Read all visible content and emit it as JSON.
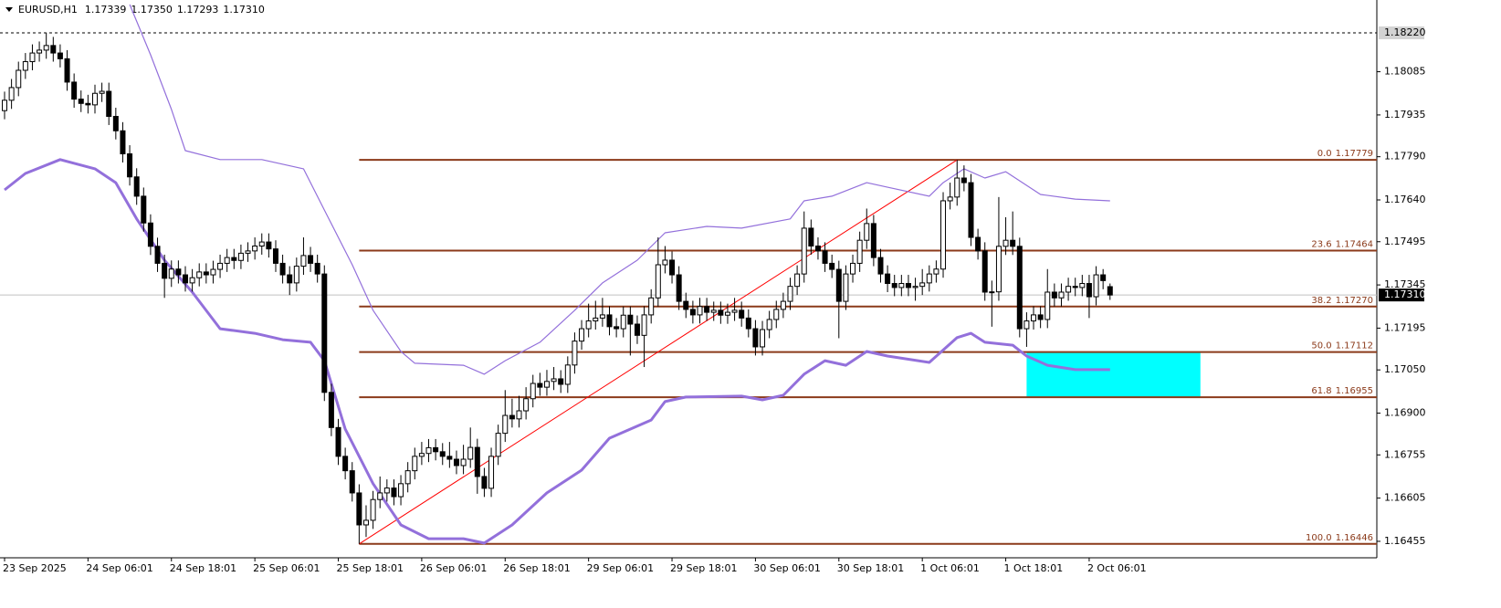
{
  "chart_data": {
    "type": "candlestick",
    "symbol": "EURUSD,H1",
    "quote_labels": [
      "1.17339",
      "1.17350",
      "1.17293",
      "1.17310"
    ],
    "up_color": "#ffffff",
    "down_color": "#000000",
    "ylim": [
      1.16401,
      1.18334
    ],
    "yticks": [
      1.18085,
      1.17935,
      {
        "value": 1.1779,
        "label": "1.17790"
      },
      {
        "value": 1.1764,
        "label": "1.17640"
      },
      1.17495,
      1.17345,
      1.17195,
      {
        "value": 1.1705,
        "label": "1.17050"
      },
      {
        "value": 1.169,
        "label": "1.16900"
      },
      1.16755,
      1.16605,
      1.16455
    ],
    "xticks": [
      {
        "value": 0,
        "label": "23 Sep 2025"
      },
      {
        "value": 12,
        "label": "24 Sep 06:01"
      },
      {
        "value": 24,
        "label": "24 Sep 18:01"
      },
      {
        "value": 36,
        "label": "25 Sep 06:01"
      },
      {
        "value": 48,
        "label": "25 Sep 18:01"
      },
      {
        "value": 60,
        "label": "26 Sep 06:01"
      },
      {
        "value": 72,
        "label": "26 Sep 18:01"
      },
      {
        "value": 84,
        "label": "29 Sep 06:01"
      },
      {
        "value": 96,
        "label": "29 Sep 18:01"
      },
      {
        "value": 108,
        "label": "30 Sep 06:01"
      },
      {
        "value": 120,
        "label": "30 Sep 18:01"
      },
      {
        "value": 132,
        "label": "1 Oct 06:01"
      },
      {
        "value": 144,
        "label": "1 Oct 18:01"
      },
      {
        "value": 156,
        "label": "2 Oct 06:01"
      }
    ],
    "high_line": {
      "value": 1.1822,
      "label": "1.18220"
    },
    "current_price": {
      "value": 1.1731,
      "label": "1.17310"
    },
    "candles": [
      [
        1.1795,
        1.18016,
        1.1792,
        1.17986
      ],
      [
        1.17986,
        1.1806,
        1.17956,
        1.1803
      ],
      [
        1.1803,
        1.1812,
        1.18,
        1.1809
      ],
      [
        1.1809,
        1.1815,
        1.1806,
        1.1812
      ],
      [
        1.1812,
        1.1818,
        1.1809,
        1.1815
      ],
      [
        1.1815,
        1.1819,
        1.1812,
        1.1816
      ],
      [
        1.1816,
        1.1822,
        1.1813,
        1.18176
      ],
      [
        1.18176,
        1.18206,
        1.1812,
        1.1815
      ],
      [
        1.1815,
        1.1818,
        1.181,
        1.1813
      ],
      [
        1.1813,
        1.1816,
        1.18019,
        1.18049
      ],
      [
        1.18049,
        1.18079,
        1.1796,
        1.1799
      ],
      [
        1.1799,
        1.1802,
        1.17945,
        1.17975
      ],
      [
        1.17975,
        1.18005,
        1.1794,
        1.1797
      ],
      [
        1.1797,
        1.1804,
        1.1794,
        1.1801
      ],
      [
        1.1801,
        1.18047,
        1.1798,
        1.18017
      ],
      [
        1.18017,
        1.18047,
        1.179,
        1.1793
      ],
      [
        1.1793,
        1.1796,
        1.1785,
        1.1788
      ],
      [
        1.1788,
        1.1791,
        1.1777,
        1.178
      ],
      [
        1.178,
        1.1783,
        1.1769,
        1.1772
      ],
      [
        1.1772,
        1.1775,
        1.17623,
        1.17653
      ],
      [
        1.17653,
        1.17683,
        1.1753,
        1.1756
      ],
      [
        1.1756,
        1.1759,
        1.17449,
        1.17479
      ],
      [
        1.17479,
        1.17509,
        1.1739,
        1.1742
      ],
      [
        1.1742,
        1.1745,
        1.173,
        1.17368
      ],
      [
        1.17368,
        1.1743,
        1.17338,
        1.174
      ],
      [
        1.174,
        1.1743,
        1.1735,
        1.1738
      ],
      [
        1.1738,
        1.1741,
        1.17322,
        1.17352
      ],
      [
        1.17352,
        1.174,
        1.17322,
        1.1737
      ],
      [
        1.1737,
        1.1742,
        1.1734,
        1.1739
      ],
      [
        1.1739,
        1.1742,
        1.1735,
        1.1738
      ],
      [
        1.1738,
        1.17429,
        1.1735,
        1.17399
      ],
      [
        1.17399,
        1.1745,
        1.17369,
        1.1742
      ],
      [
        1.1742,
        1.1747,
        1.1739,
        1.1744
      ],
      [
        1.1744,
        1.1747,
        1.174,
        1.1743
      ],
      [
        1.1743,
        1.17485,
        1.174,
        1.17455
      ],
      [
        1.17455,
        1.17493,
        1.17425,
        1.17463
      ],
      [
        1.17463,
        1.1751,
        1.17433,
        1.1748
      ],
      [
        1.1748,
        1.17524,
        1.1745,
        1.17494
      ],
      [
        1.17494,
        1.17524,
        1.1744,
        1.1747
      ],
      [
        1.1747,
        1.175,
        1.1739,
        1.1742
      ],
      [
        1.1742,
        1.1745,
        1.1735,
        1.1738
      ],
      [
        1.1738,
        1.1741,
        1.1731,
        1.17352
      ],
      [
        1.17352,
        1.1744,
        1.17322,
        1.1741
      ],
      [
        1.1741,
        1.1751,
        1.1738,
        1.17447
      ],
      [
        1.17447,
        1.17477,
        1.1739,
        1.1742
      ],
      [
        1.1742,
        1.1745,
        1.17353,
        1.17383
      ],
      [
        1.17383,
        1.17413,
        1.16942,
        1.16972
      ],
      [
        1.16972,
        1.17002,
        1.1682,
        1.1685
      ],
      [
        1.1685,
        1.1688,
        1.1672,
        1.1675
      ],
      [
        1.1675,
        1.1678,
        1.1667,
        1.167
      ],
      [
        1.167,
        1.1673,
        1.16593,
        1.16623
      ],
      [
        1.16623,
        1.16653,
        1.16446,
        1.16512
      ],
      [
        1.16512,
        1.1658,
        1.1647,
        1.16528
      ],
      [
        1.16528,
        1.1663,
        1.16498,
        1.166
      ],
      [
        1.166,
        1.1668,
        1.1657,
        1.16623
      ],
      [
        1.16623,
        1.1667,
        1.16593,
        1.1664
      ],
      [
        1.1664,
        1.1667,
        1.1658,
        1.1661
      ],
      [
        1.1661,
        1.16685,
        1.1658,
        1.16655
      ],
      [
        1.16655,
        1.1673,
        1.16625,
        1.167
      ],
      [
        1.167,
        1.1678,
        1.1667,
        1.1675
      ],
      [
        1.1675,
        1.168,
        1.1672,
        1.1676
      ],
      [
        1.1676,
        1.1681,
        1.1673,
        1.1678
      ],
      [
        1.1678,
        1.1681,
        1.16736,
        1.16766
      ],
      [
        1.16766,
        1.16796,
        1.1672,
        1.1675
      ],
      [
        1.1675,
        1.168,
        1.1671,
        1.1674
      ],
      [
        1.1674,
        1.1677,
        1.16688,
        1.16718
      ],
      [
        1.16718,
        1.1679,
        1.16688,
        1.1674
      ],
      [
        1.1674,
        1.1685,
        1.1671,
        1.16781
      ],
      [
        1.16781,
        1.16811,
        1.1662,
        1.1668
      ],
      [
        1.1668,
        1.1671,
        1.16609,
        1.16639
      ],
      [
        1.16639,
        1.1678,
        1.16609,
        1.1675
      ],
      [
        1.1675,
        1.1686,
        1.1672,
        1.1683
      ],
      [
        1.1683,
        1.1698,
        1.168,
        1.16892
      ],
      [
        1.16892,
        1.1695,
        1.1685,
        1.1688
      ],
      [
        1.1688,
        1.1696,
        1.1685,
        1.16908
      ],
      [
        1.16908,
        1.1699,
        1.16878,
        1.1695
      ],
      [
        1.1695,
        1.17033,
        1.1692,
        1.17003
      ],
      [
        1.17003,
        1.1704,
        1.1696,
        1.1699
      ],
      [
        1.1699,
        1.1705,
        1.1696,
        1.1701
      ],
      [
        1.1701,
        1.1706,
        1.1698,
        1.17019
      ],
      [
        1.17019,
        1.17049,
        1.1697,
        1.17
      ],
      [
        1.17,
        1.17097,
        1.1697,
        1.17067
      ],
      [
        1.17067,
        1.1718,
        1.17037,
        1.1715
      ],
      [
        1.1715,
        1.17223,
        1.1712,
        1.17193
      ],
      [
        1.17193,
        1.1728,
        1.17163,
        1.1722
      ],
      [
        1.1722,
        1.1729,
        1.1719,
        1.1723
      ],
      [
        1.1723,
        1.173,
        1.172,
        1.17241
      ],
      [
        1.17241,
        1.17271,
        1.1717,
        1.172
      ],
      [
        1.172,
        1.1723,
        1.17163,
        1.17193
      ],
      [
        1.17193,
        1.1727,
        1.17163,
        1.1724
      ],
      [
        1.1724,
        1.1727,
        1.171,
        1.17209
      ],
      [
        1.17209,
        1.17239,
        1.1714,
        1.1717
      ],
      [
        1.1717,
        1.17271,
        1.1706,
        1.17241
      ],
      [
        1.17241,
        1.1733,
        1.17211,
        1.173
      ],
      [
        1.173,
        1.1751,
        1.1727,
        1.17415
      ],
      [
        1.17415,
        1.1748,
        1.17385,
        1.17431
      ],
      [
        1.17431,
        1.17461,
        1.1735,
        1.1738
      ],
      [
        1.1738,
        1.1741,
        1.17258,
        1.17288
      ],
      [
        1.17288,
        1.17318,
        1.1723,
        1.1726
      ],
      [
        1.1726,
        1.1729,
        1.17211,
        1.17241
      ],
      [
        1.17241,
        1.173,
        1.17211,
        1.1727
      ],
      [
        1.1727,
        1.173,
        1.1722,
        1.1725
      ],
      [
        1.1725,
        1.17287,
        1.1722,
        1.17257
      ],
      [
        1.17257,
        1.17287,
        1.1721,
        1.1724
      ],
      [
        1.1724,
        1.1728,
        1.1721,
        1.1725
      ],
      [
        1.1725,
        1.173,
        1.1722,
        1.17257
      ],
      [
        1.17257,
        1.17287,
        1.172,
        1.1723
      ],
      [
        1.1723,
        1.1726,
        1.17163,
        1.17193
      ],
      [
        1.17193,
        1.17223,
        1.171,
        1.1713
      ],
      [
        1.1713,
        1.1722,
        1.171,
        1.1719
      ],
      [
        1.1719,
        1.17255,
        1.1716,
        1.17225
      ],
      [
        1.17225,
        1.1729,
        1.17195,
        1.1726
      ],
      [
        1.1726,
        1.17318,
        1.1723,
        1.17288
      ],
      [
        1.17288,
        1.1737,
        1.17258,
        1.1734
      ],
      [
        1.1734,
        1.17413,
        1.1731,
        1.17383
      ],
      [
        1.17383,
        1.176,
        1.17353,
        1.17542
      ],
      [
        1.17542,
        1.17572,
        1.1745,
        1.1748
      ],
      [
        1.1748,
        1.1751,
        1.17433,
        1.17463
      ],
      [
        1.17463,
        1.17493,
        1.1739,
        1.1742
      ],
      [
        1.1742,
        1.1745,
        1.17369,
        1.17399
      ],
      [
        1.17399,
        1.17429,
        1.1716,
        1.17288
      ],
      [
        1.17288,
        1.17413,
        1.17258,
        1.17383
      ],
      [
        1.17383,
        1.1745,
        1.17353,
        1.1742
      ],
      [
        1.1742,
        1.1753,
        1.1739,
        1.175
      ],
      [
        1.175,
        1.1761,
        1.1747,
        1.17558
      ],
      [
        1.17558,
        1.17588,
        1.1741,
        1.1744
      ],
      [
        1.1744,
        1.1747,
        1.17353,
        1.17383
      ],
      [
        1.17383,
        1.17413,
        1.1732,
        1.1735
      ],
      [
        1.1735,
        1.1738,
        1.17306,
        1.17336
      ],
      [
        1.17336,
        1.1738,
        1.17306,
        1.1735
      ],
      [
        1.1735,
        1.1738,
        1.17306,
        1.17336
      ],
      [
        1.17336,
        1.1737,
        1.1729,
        1.1734
      ],
      [
        1.1734,
        1.174,
        1.1731,
        1.17352
      ],
      [
        1.17352,
        1.17413,
        1.17322,
        1.17383
      ],
      [
        1.17383,
        1.1743,
        1.17353,
        1.174
      ],
      [
        1.174,
        1.17667,
        1.1737,
        1.17637
      ],
      [
        1.17637,
        1.177,
        1.17607,
        1.1765
      ],
      [
        1.1765,
        1.17779,
        1.1762,
        1.17716
      ],
      [
        1.17716,
        1.1776,
        1.1767,
        1.177
      ],
      [
        1.177,
        1.1773,
        1.1748,
        1.1751
      ],
      [
        1.1751,
        1.1754,
        1.17433,
        1.17463
      ],
      [
        1.17463,
        1.17493,
        1.1729,
        1.1732
      ],
      [
        1.1732,
        1.1736,
        1.172,
        1.17321
      ],
      [
        1.17321,
        1.1765,
        1.1729,
        1.17479
      ],
      [
        1.17479,
        1.1758,
        1.17449,
        1.175
      ],
      [
        1.175,
        1.176,
        1.17449,
        1.17479
      ],
      [
        1.17479,
        1.17509,
        1.17163,
        1.17193
      ],
      [
        1.17193,
        1.1725,
        1.1713,
        1.1722
      ],
      [
        1.1722,
        1.17271,
        1.1719,
        1.17241
      ],
      [
        1.17241,
        1.17271,
        1.17195,
        1.17225
      ],
      [
        1.17225,
        1.174,
        1.17195,
        1.1732
      ],
      [
        1.1732,
        1.1735,
        1.1727,
        1.173
      ],
      [
        1.173,
        1.1735,
        1.1727,
        1.1732
      ],
      [
        1.1732,
        1.1737,
        1.1729,
        1.1734
      ],
      [
        1.1734,
        1.1737,
        1.17306,
        1.17336
      ],
      [
        1.17336,
        1.1738,
        1.17306,
        1.1735
      ],
      [
        1.1735,
        1.1738,
        1.1723,
        1.17304
      ],
      [
        1.17304,
        1.1741,
        1.17274,
        1.1738
      ],
      [
        1.1738,
        1.174,
        1.1733,
        1.1736
      ],
      [
        1.17339,
        1.1735,
        1.17293,
        1.1731
      ]
    ],
    "indicators": [
      {
        "color": "#9370db",
        "bold": false,
        "x": [
          18,
          21,
          24,
          26,
          31,
          37,
          43,
          46,
          50,
          53,
          57,
          59,
          66,
          69,
          72,
          77,
          82,
          86,
          91,
          95,
          101,
          106,
          113,
          115,
          119,
          124,
          127,
          133,
          135,
          138,
          141,
          144,
          149,
          154,
          159
        ],
        "values": [
          1.18318,
          1.18144,
          1.17954,
          1.17811,
          1.1778,
          1.1778,
          1.17748,
          1.17605,
          1.17415,
          1.17257,
          1.17114,
          1.17073,
          1.17066,
          1.17035,
          1.17082,
          1.17146,
          1.17257,
          1.17352,
          1.17431,
          1.17526,
          1.17548,
          1.17542,
          1.17574,
          1.17637,
          1.17653,
          1.177,
          1.17684,
          1.17653,
          1.177,
          1.17748,
          1.17716,
          1.17738,
          1.17659,
          1.17643,
          1.17637
        ]
      },
      {
        "color": "#9370db",
        "bold": true,
        "x": [
          0,
          3,
          8,
          13,
          16,
          19,
          23,
          27,
          31,
          36,
          40,
          44,
          46,
          49,
          53,
          57,
          61,
          66,
          69,
          73,
          78,
          83,
          87,
          93,
          95,
          98,
          106,
          109,
          112,
          115,
          118,
          121,
          124,
          127,
          133,
          137,
          139,
          141,
          145,
          147,
          150,
          154,
          159
        ],
        "values": [
          1.17675,
          1.17732,
          1.1778,
          1.17748,
          1.177,
          1.17574,
          1.17431,
          1.1732,
          1.17193,
          1.17177,
          1.17155,
          1.17146,
          1.17082,
          1.16845,
          1.16655,
          1.16512,
          1.16464,
          1.16464,
          1.16449,
          1.16512,
          1.16623,
          1.16702,
          1.16813,
          1.16876,
          1.1694,
          1.16956,
          1.16959,
          1.16946,
          1.16962,
          1.17035,
          1.17082,
          1.17066,
          1.17114,
          1.17098,
          1.17076,
          1.17162,
          1.17177,
          1.17146,
          1.17136,
          1.17098,
          1.17066,
          1.17051,
          1.17051
        ]
      }
    ],
    "fibonacci": {
      "color": "#8b3a1a",
      "from": 51,
      "ratios": [
        "0.0",
        "23.6",
        "38.2",
        "50.0",
        "61.8",
        "100.0"
      ],
      "values": [
        1.17779,
        1.17464,
        1.1727,
        1.17112,
        1.16955,
        1.16446
      ],
      "value_labels": [
        "1.17779",
        "1.17464",
        "1.17270",
        "1.17112",
        "1.16955",
        "1.16446"
      ]
    },
    "trendline": {
      "color": "#ff0000",
      "x": [
        51,
        137
      ],
      "values": [
        1.16446,
        1.17779
      ]
    },
    "zone": {
      "color": "#00ffff",
      "x": [
        147,
        172
      ],
      "values": [
        1.16955,
        1.17112
      ]
    }
  }
}
